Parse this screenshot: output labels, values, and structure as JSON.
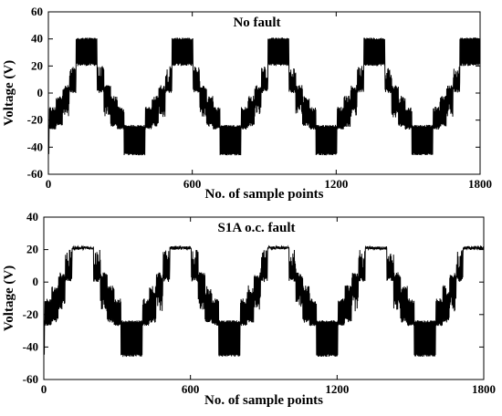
{
  "chart_data": [
    {
      "type": "line",
      "title": "No fault",
      "xlabel": "No. of sample points",
      "ylabel": "Voltage (V)",
      "xlim": [
        0,
        1800
      ],
      "ylim": [
        -60,
        60
      ],
      "xticks": [
        0,
        600,
        1200,
        1800
      ],
      "yticks": [
        -60,
        -40,
        -20,
        0,
        20,
        40,
        60
      ],
      "grid": false,
      "series": [
        {
          "period_samples": 400,
          "first_peak_center": 160,
          "levels": [
            0,
            20,
            40,
            20,
            0,
            -20,
            -40,
            -20,
            0
          ],
          "positive_chop_max": 41,
          "positive_chop_min": 20,
          "negative_chop_min": -46,
          "negative_chop_max": -25,
          "color": "#000000"
        }
      ]
    },
    {
      "type": "line",
      "title": "S1A o.c. fault",
      "xlabel": "No. of sample points",
      "ylabel": "Voltage (V)",
      "xlim": [
        0,
        1800
      ],
      "ylim": [
        -60,
        40
      ],
      "xticks": [
        0,
        600,
        1200,
        1800
      ],
      "yticks": [
        -60,
        -40,
        -20,
        0,
        20,
        40
      ],
      "grid": false,
      "series": [
        {
          "period_samples": 400,
          "first_peak_center": 160,
          "levels": [
            0,
            20,
            20,
            20,
            0,
            -20,
            -40,
            -20,
            0
          ],
          "positive_plateau": 21,
          "negative_chop_min": -46,
          "negative_chop_max": -25,
          "color": "#000000"
        }
      ]
    }
  ]
}
